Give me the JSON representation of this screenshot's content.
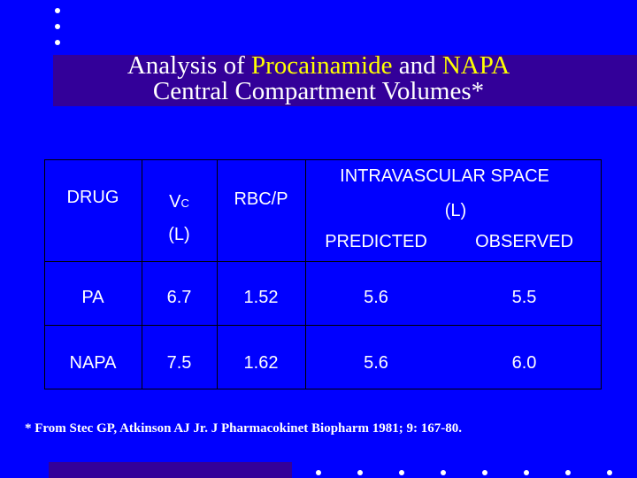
{
  "title": {
    "part1": "Analysis of ",
    "highlight1": "Procainamide",
    "part2": " and ",
    "highlight2": "NAPA",
    "line2": "Central Compartment Volumes*"
  },
  "table": {
    "headers": {
      "drug": "DRUG",
      "vc_main": "V",
      "vc_sub": "C",
      "vc_unit": "(L)",
      "rbcp": "RBC/P",
      "intravascular": "INTRAVASCULAR SPACE",
      "intravascular_unit": "(L)",
      "predicted": "PREDICTED",
      "observed": "OBSERVED"
    },
    "rows": [
      {
        "drug": "PA",
        "vc": "6.7",
        "rbcp": "1.52",
        "predicted": "5.6",
        "observed": "5.5"
      },
      {
        "drug": "NAPA",
        "vc": "7.5",
        "rbcp": "1.62",
        "predicted": "5.6",
        "observed": "6.0"
      }
    ]
  },
  "footnote": "* From Stec GP, Atkinson AJ Jr. J Pharmacokinet Biopharm 1981; 9: 167-80.",
  "colors": {
    "background": "#0000ff",
    "title_bar": "#330099",
    "highlight": "#ffff00",
    "text": "#ffffff"
  }
}
